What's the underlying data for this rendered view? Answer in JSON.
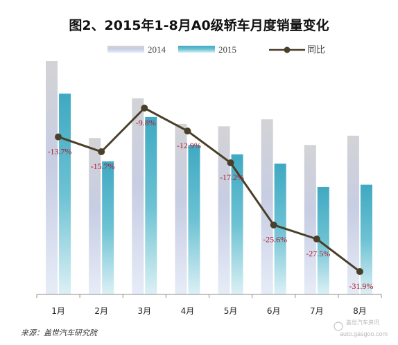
{
  "chart_data": {
    "type": "bar",
    "title": "图2、2015年1-8月A0级轿车月度销量变化",
    "categories": [
      "1月",
      "2月",
      "3月",
      "4月",
      "5月",
      "6月",
      "7月",
      "8月"
    ],
    "series": [
      {
        "name": "2014",
        "values": [
          100,
          67,
          84,
          73,
          72,
          75,
          64,
          68
        ],
        "color": "#c5cde3"
      },
      {
        "name": "2015",
        "values": [
          86,
          57,
          76,
          64,
          60,
          56,
          46,
          47
        ],
        "color": "#4ab3c9"
      }
    ],
    "line_series": {
      "name": "同比",
      "values": [
        -13.7,
        -15.7,
        -9.8,
        -12.9,
        -17.2,
        -25.6,
        -27.5,
        -31.9
      ],
      "labels": [
        "-13.7%",
        "-15.7%",
        "-9.8%",
        "-12.9%",
        "-17.2%",
        "-25.6%",
        "-27.5%",
        "-31.9%"
      ],
      "color": "#4a3f29",
      "label_color": "#b0162b"
    },
    "legend_position": "top",
    "grid": false
  },
  "footer": {
    "source": "来源：盖世汽车研究院",
    "watermark_cn": "盖世汽车资讯",
    "watermark_en": "auto.gasgoo.com"
  }
}
